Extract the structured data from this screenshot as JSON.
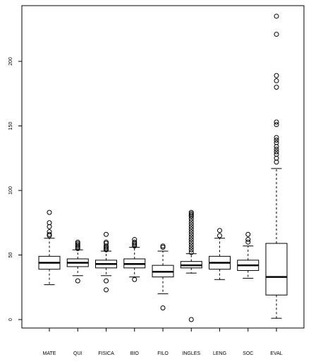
{
  "chart_data": {
    "type": "boxplot",
    "title": "",
    "xlabel": "",
    "ylabel": "",
    "ylim": [
      -10,
      245
    ],
    "yticks": [
      0,
      50,
      100,
      150,
      200
    ],
    "ytick_labels": [
      "0",
      "50",
      "100",
      "150",
      "200"
    ],
    "categories": [
      "MATE",
      "QUI",
      "FISICA",
      "BIO",
      "FILO",
      "INGLES",
      "LENG",
      "SOC",
      "EVAL"
    ],
    "boxes": [
      {
        "name": "MATE",
        "whisker_low": 27,
        "q1": 39,
        "median": 44,
        "q3": 49,
        "whisker_high": 63,
        "outliers": [
          65,
          66,
          68,
          72,
          75,
          83
        ]
      },
      {
        "name": "QUI",
        "whisker_low": 34,
        "q1": 41,
        "median": 44,
        "q3": 47,
        "whisker_high": 54,
        "outliers": [
          30,
          55,
          56,
          57,
          58,
          59,
          60
        ]
      },
      {
        "name": "FISICA",
        "whisker_low": 34,
        "q1": 40,
        "median": 43,
        "q3": 46,
        "whisker_high": 53,
        "outliers": [
          23,
          30,
          54,
          55,
          56,
          57,
          59,
          60,
          66
        ]
      },
      {
        "name": "BIO",
        "whisker_low": 33,
        "q1": 40,
        "median": 43,
        "q3": 47,
        "whisker_high": 56,
        "outliers": [
          31,
          57,
          58,
          59,
          60,
          62
        ]
      },
      {
        "name": "FILO",
        "whisker_low": 20,
        "q1": 33,
        "median": 37,
        "q3": 42,
        "whisker_high": 53,
        "outliers": [
          9,
          56,
          57
        ]
      },
      {
        "name": "INGLES",
        "whisker_low": 36,
        "q1": 40,
        "median": 42,
        "q3": 45,
        "whisker_high": 51,
        "outliers": [
          0,
          52,
          54,
          56,
          58,
          60,
          62,
          64,
          66,
          68,
          70,
          72,
          74,
          76,
          78,
          80,
          81,
          82,
          83
        ]
      },
      {
        "name": "LENG",
        "whisker_low": 31,
        "q1": 39,
        "median": 44,
        "q3": 49,
        "whisker_high": 63,
        "outliers": [
          65,
          69
        ]
      },
      {
        "name": "SOC",
        "whisker_low": 32,
        "q1": 38,
        "median": 42,
        "q3": 46,
        "whisker_high": 57,
        "outliers": [
          60,
          62,
          66
        ]
      },
      {
        "name": "EVAL",
        "whisker_low": 1,
        "q1": 19,
        "median": 33,
        "q3": 59,
        "whisker_high": 117,
        "outliers": [
          122,
          125,
          128,
          130,
          132,
          134,
          137,
          139,
          141,
          151,
          153,
          180,
          185,
          189,
          221,
          235
        ]
      }
    ],
    "grid": false,
    "legend": "none"
  }
}
